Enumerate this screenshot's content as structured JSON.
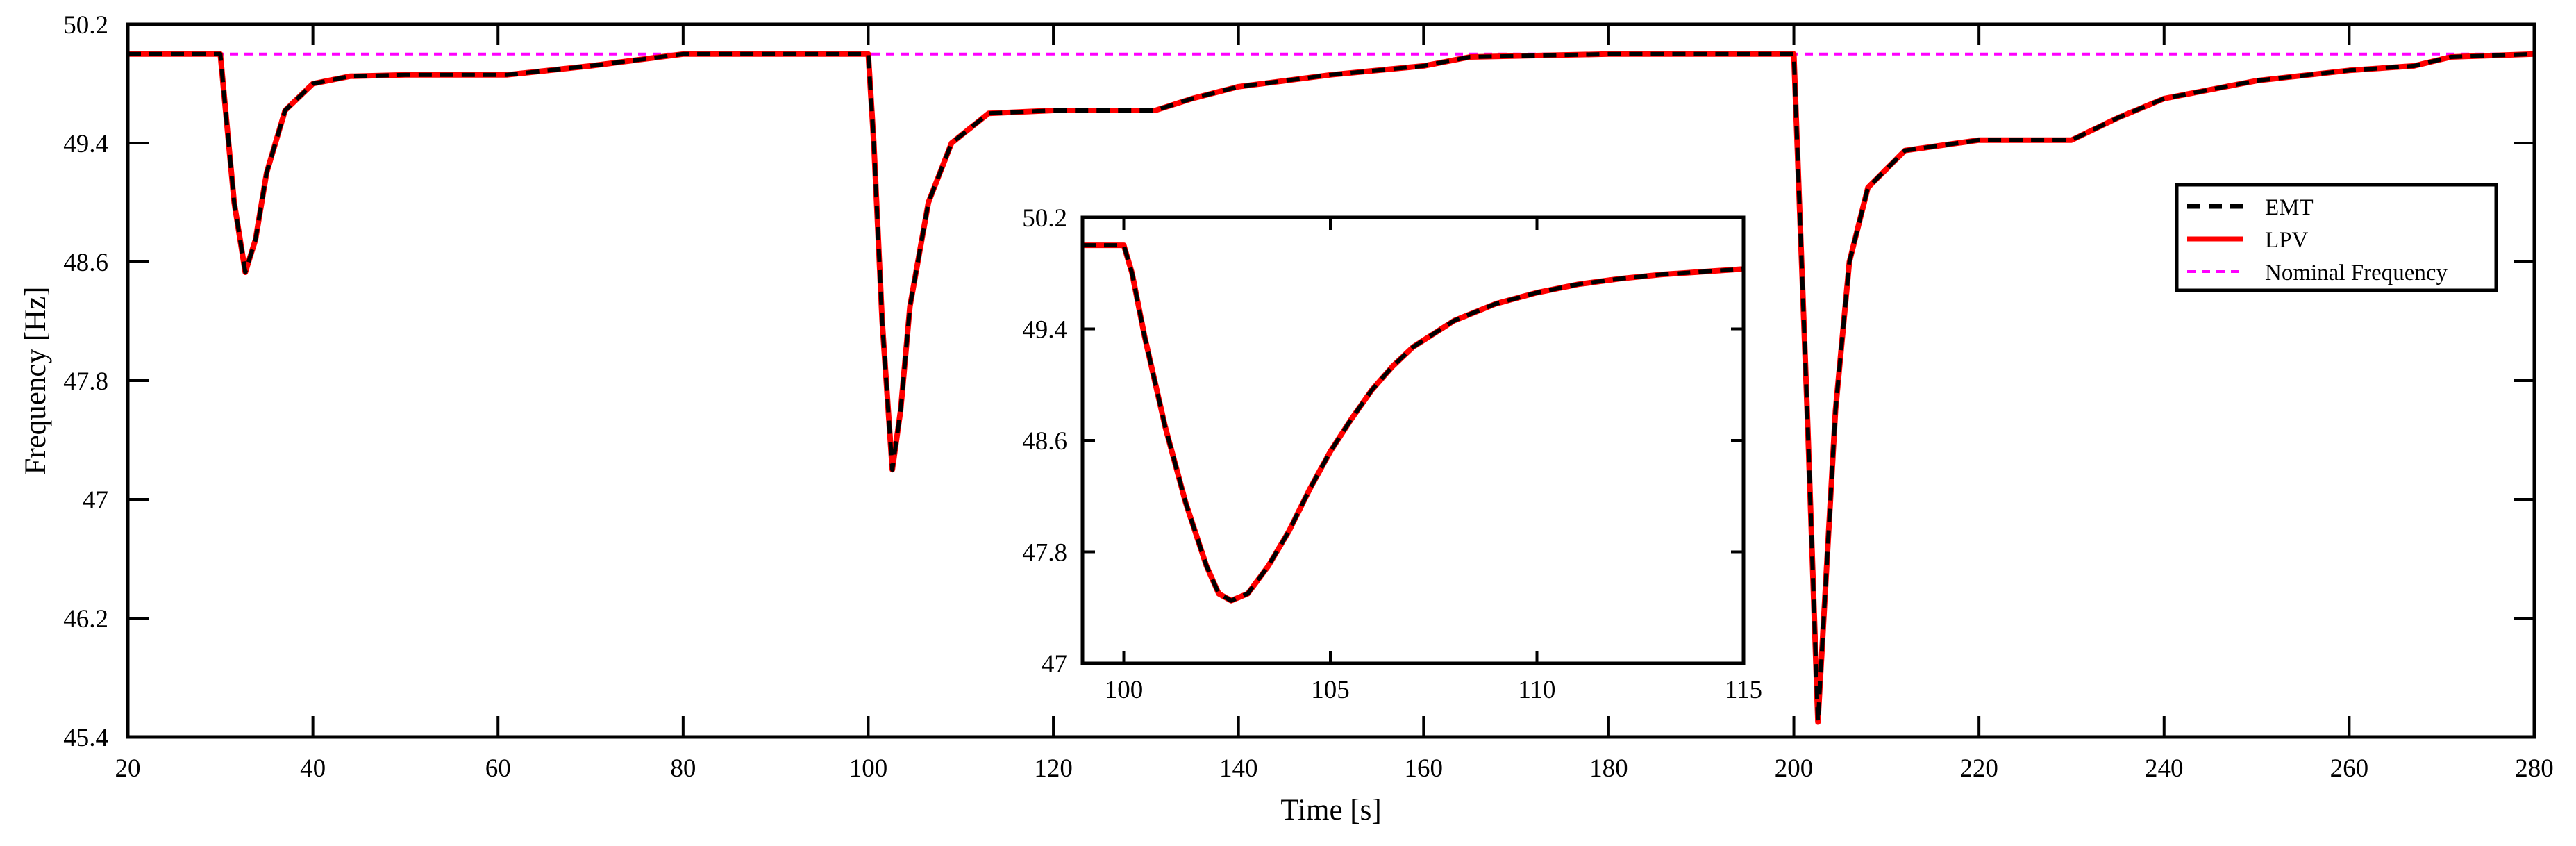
{
  "chart_data": [
    {
      "name": "main",
      "type": "line",
      "xlabel": "Time [s]",
      "ylabel": "Frequency [Hz]",
      "xlim": [
        20,
        280
      ],
      "ylim": [
        45.4,
        50.2
      ],
      "xticks": [
        20,
        40,
        60,
        80,
        100,
        120,
        140,
        160,
        180,
        200,
        220,
        240,
        260,
        280
      ],
      "yticks": [
        45.4,
        46.2,
        47,
        47.8,
        48.6,
        49.4,
        50.2
      ],
      "ytick_labels": [
        "45.4",
        "46.2",
        "47",
        "47.8",
        "48.6",
        "49.4",
        "50.2"
      ],
      "grid": false,
      "legend_position": "upper-right",
      "series": [
        {
          "name": "EMT",
          "style": "dashed",
          "color": "#000000",
          "x": [
            20,
            30,
            30.6,
            31.5,
            32.7,
            33.8,
            35,
            37,
            40,
            44,
            50,
            61,
            70,
            80,
            90,
            100,
            100.6,
            101.5,
            102.6,
            103.5,
            104.5,
            106.5,
            109,
            113,
            120,
            131,
            135,
            140,
            150,
            160,
            165,
            180,
            200,
            200.6,
            201.5,
            202.6,
            203.5,
            204.5,
            206,
            208,
            212,
            220,
            230,
            231,
            235,
            240,
            250,
            260,
            267,
            271,
            280
          ],
          "y": [
            50,
            50,
            49.6,
            49.0,
            48.53,
            48.75,
            49.2,
            49.62,
            49.8,
            49.85,
            49.86,
            49.86,
            49.92,
            50.0,
            50.0,
            50.0,
            49.4,
            48.2,
            47.2,
            47.6,
            48.3,
            49.0,
            49.4,
            49.6,
            49.62,
            49.62,
            49.7,
            49.78,
            49.86,
            49.92,
            49.98,
            50.0,
            50.0,
            49.0,
            47.5,
            45.5,
            46.5,
            47.6,
            48.6,
            49.1,
            49.35,
            49.42,
            49.42,
            49.45,
            49.57,
            49.7,
            49.82,
            49.89,
            49.92,
            49.98,
            50.0
          ]
        },
        {
          "name": "LPV",
          "style": "solid",
          "color": "#ff0000",
          "x": [
            20,
            30,
            30.6,
            31.5,
            32.7,
            33.8,
            35,
            37,
            40,
            44,
            50,
            61,
            70,
            80,
            90,
            100,
            100.6,
            101.5,
            102.6,
            103.5,
            104.5,
            106.5,
            109,
            113,
            120,
            131,
            135,
            140,
            150,
            160,
            165,
            180,
            200,
            200.6,
            201.5,
            202.6,
            203.5,
            204.5,
            206,
            208,
            212,
            220,
            230,
            231,
            235,
            240,
            250,
            260,
            267,
            271,
            280
          ],
          "y": [
            50,
            50,
            49.6,
            49.0,
            48.53,
            48.75,
            49.2,
            49.62,
            49.8,
            49.85,
            49.86,
            49.86,
            49.92,
            50.0,
            50.0,
            50.0,
            49.4,
            48.2,
            47.2,
            47.6,
            48.3,
            49.0,
            49.4,
            49.6,
            49.62,
            49.62,
            49.7,
            49.78,
            49.86,
            49.92,
            49.98,
            50.0,
            50.0,
            49.0,
            47.5,
            45.5,
            46.5,
            47.6,
            48.6,
            49.1,
            49.35,
            49.42,
            49.42,
            49.45,
            49.57,
            49.7,
            49.82,
            49.89,
            49.92,
            49.98,
            50.0
          ]
        },
        {
          "name": "Nominal Frequency",
          "style": "dashed",
          "color": "#ff00ff",
          "x": [
            20,
            280
          ],
          "y": [
            50,
            50
          ]
        }
      ]
    },
    {
      "name": "inset",
      "type": "line",
      "xlim": [
        99,
        115
      ],
      "ylim": [
        47,
        50.2
      ],
      "xticks": [
        100,
        105,
        110,
        115
      ],
      "yticks": [
        47,
        47.8,
        48.6,
        49.4,
        50.2
      ],
      "ytick_labels": [
        "47",
        "47.8",
        "48.6",
        "49.4",
        "50.2"
      ],
      "series": [
        {
          "name": "EMT",
          "style": "dashed",
          "color": "#000000",
          "x": [
            99,
            100,
            100.2,
            100.5,
            101,
            101.5,
            102,
            102.3,
            102.6,
            103,
            103.5,
            104,
            104.5,
            105,
            105.5,
            106,
            106.5,
            107,
            108,
            109,
            110,
            111,
            112,
            113,
            114,
            115
          ],
          "y": [
            50,
            50,
            49.8,
            49.35,
            48.7,
            48.15,
            47.7,
            47.5,
            47.45,
            47.5,
            47.7,
            47.95,
            48.25,
            48.52,
            48.75,
            48.96,
            49.13,
            49.27,
            49.46,
            49.58,
            49.66,
            49.72,
            49.76,
            49.79,
            49.81,
            49.83
          ]
        },
        {
          "name": "LPV",
          "style": "solid",
          "color": "#ff0000",
          "x": [
            99,
            100,
            100.2,
            100.5,
            101,
            101.5,
            102,
            102.3,
            102.6,
            103,
            103.5,
            104,
            104.5,
            105,
            105.5,
            106,
            106.5,
            107,
            108,
            109,
            110,
            111,
            112,
            113,
            114,
            115
          ],
          "y": [
            50,
            50,
            49.8,
            49.35,
            48.7,
            48.15,
            47.7,
            47.5,
            47.45,
            47.5,
            47.7,
            47.95,
            48.25,
            48.52,
            48.75,
            48.96,
            49.13,
            49.27,
            49.46,
            49.58,
            49.66,
            49.72,
            49.76,
            49.79,
            49.81,
            49.83
          ]
        }
      ]
    }
  ]
}
